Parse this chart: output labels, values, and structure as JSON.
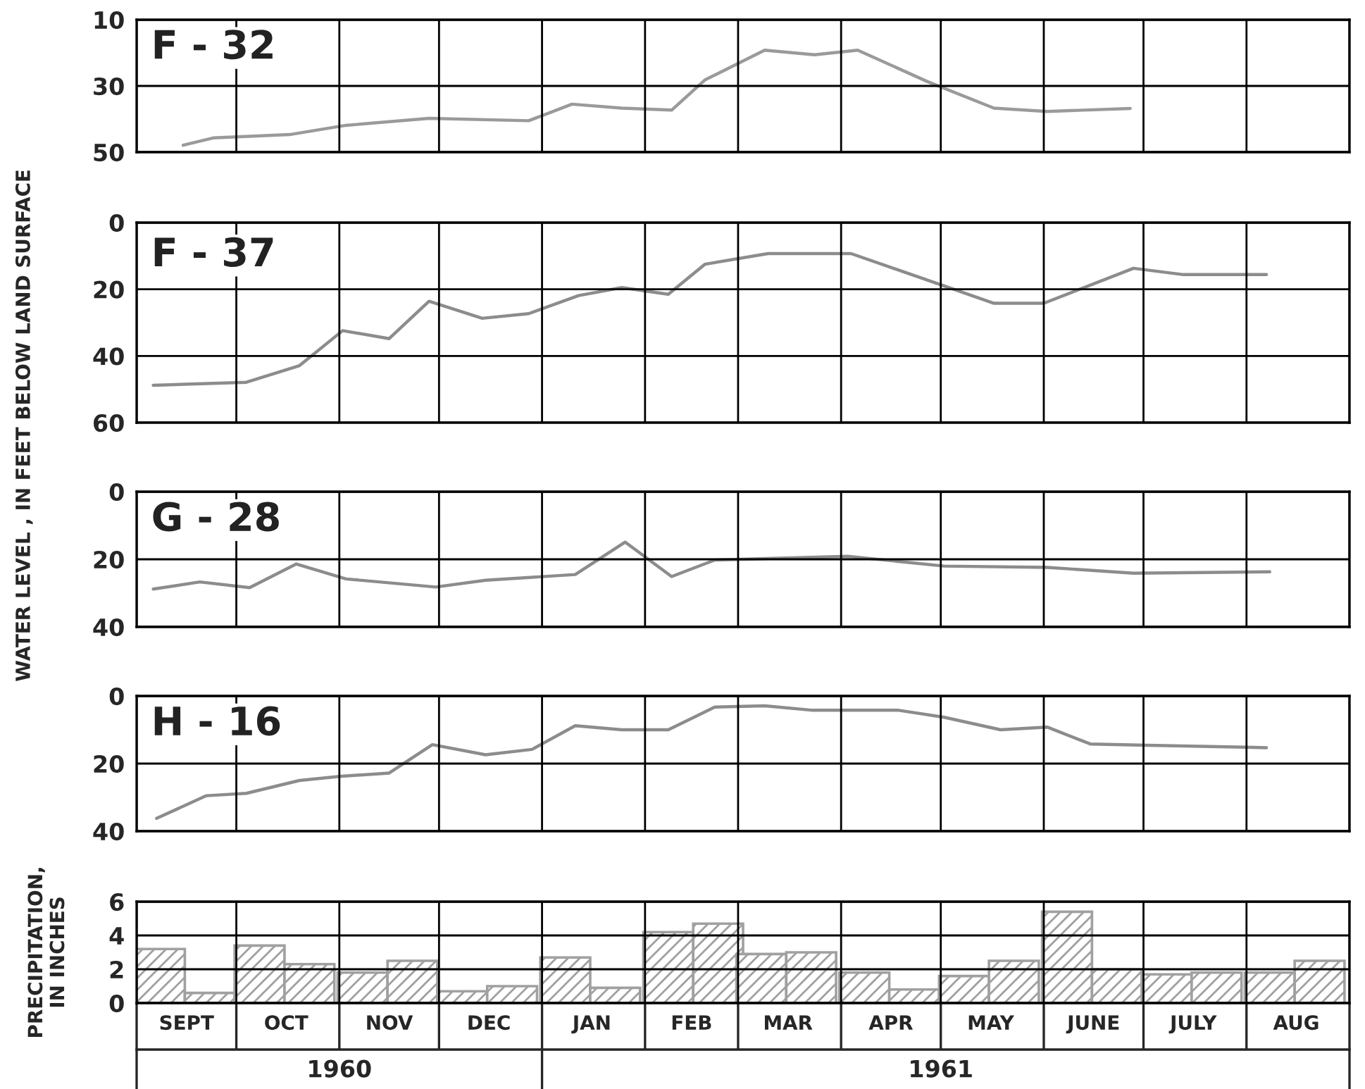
{
  "chart_data": [
    {
      "type": "line",
      "title": "F - 32",
      "ylabel": "WATER LEVEL , IN FEET BELOW LAND SURFACE",
      "xlim": [
        "1960-09-01",
        "1961-09-01"
      ],
      "xticks": [
        {
          "value": "1960-09-01",
          "label": null
        },
        {
          "value": "1960-10-01",
          "label": null
        },
        {
          "value": "1960-11-01",
          "label": null
        },
        {
          "value": "1960-12-01",
          "label": null
        },
        {
          "value": "1961-01-01",
          "label": null
        },
        {
          "value": "1961-02-01",
          "label": null
        },
        {
          "value": "1961-03-01",
          "label": null
        },
        {
          "value": "1961-04-01",
          "label": null
        },
        {
          "value": "1961-05-01",
          "label": null
        },
        {
          "value": "1961-06-01",
          "label": null
        },
        {
          "value": "1961-07-01",
          "label": null
        },
        {
          "value": "1961-08-01",
          "label": null
        },
        {
          "value": "1961-09-01",
          "label": null
        }
      ],
      "ylim": [
        50,
        10
      ],
      "yticks": [
        10,
        30,
        50
      ],
      "grid": true,
      "tick_labels": "y",
      "series": [
        {
          "color": "#9a9a9a",
          "x": [
            "1960-09-15",
            "1960-09-24",
            "1960-10-17",
            "1960-11-03",
            "1960-11-28",
            "1960-12-28",
            "1961-01-10",
            "1961-01-25",
            "1961-02-09",
            "1961-02-19",
            "1961-03-09",
            "1961-03-24",
            "1961-04-06",
            "1961-04-27",
            "1961-05-17",
            "1961-06-02",
            "1961-06-27"
          ],
          "values": [
            47.9,
            45.7,
            44.7,
            41.9,
            39.8,
            40.5,
            35.5,
            36.7,
            37.3,
            28.2,
            19.2,
            20.6,
            19.2,
            28.7,
            36.7,
            37.7,
            36.8
          ]
        }
      ]
    },
    {
      "type": "line",
      "title": "F - 37",
      "xlim": [
        "1960-09-01",
        "1961-09-01"
      ],
      "xticks": [
        {
          "value": "1960-09-01",
          "label": null
        },
        {
          "value": "1960-10-01",
          "label": null
        },
        {
          "value": "1960-11-01",
          "label": null
        },
        {
          "value": "1960-12-01",
          "label": null
        },
        {
          "value": "1961-01-01",
          "label": null
        },
        {
          "value": "1961-02-01",
          "label": null
        },
        {
          "value": "1961-03-01",
          "label": null
        },
        {
          "value": "1961-04-01",
          "label": null
        },
        {
          "value": "1961-05-01",
          "label": null
        },
        {
          "value": "1961-06-01",
          "label": null
        },
        {
          "value": "1961-07-01",
          "label": null
        },
        {
          "value": "1961-08-01",
          "label": null
        },
        {
          "value": "1961-09-01",
          "label": null
        }
      ],
      "ylim": [
        60,
        0
      ],
      "yticks": [
        0,
        20,
        40,
        60
      ],
      "grid": true,
      "tick_labels": "y",
      "series": [
        {
          "color": "#8c8c8c",
          "x": [
            "1960-09-06",
            "1960-10-04",
            "1960-10-20",
            "1960-11-02",
            "1960-11-16",
            "1960-11-28",
            "1960-12-14",
            "1960-12-28",
            "1961-01-12",
            "1961-01-25",
            "1961-02-08",
            "1961-02-19",
            "1961-03-10",
            "1961-04-04",
            "1961-05-02",
            "1961-05-17",
            "1961-06-01",
            "1961-06-28",
            "1961-07-13",
            "1961-08-07"
          ],
          "values": [
            48.8,
            47.9,
            42.9,
            32.4,
            34.8,
            23.6,
            28.7,
            27.3,
            21.9,
            19.5,
            21.5,
            12.5,
            9.3,
            9.3,
            19,
            24.2,
            24.2,
            13.7,
            15.6,
            15.6
          ]
        }
      ]
    },
    {
      "type": "line",
      "title": "G - 28",
      "xlim": [
        "1960-09-01",
        "1961-09-01"
      ],
      "xticks": [
        {
          "value": "1960-09-01",
          "label": null
        },
        {
          "value": "1960-10-01",
          "label": null
        },
        {
          "value": "1960-11-01",
          "label": null
        },
        {
          "value": "1960-12-01",
          "label": null
        },
        {
          "value": "1961-01-01",
          "label": null
        },
        {
          "value": "1961-02-01",
          "label": null
        },
        {
          "value": "1961-03-01",
          "label": null
        },
        {
          "value": "1961-04-01",
          "label": null
        },
        {
          "value": "1961-05-01",
          "label": null
        },
        {
          "value": "1961-06-01",
          "label": null
        },
        {
          "value": "1961-07-01",
          "label": null
        },
        {
          "value": "1961-08-01",
          "label": null
        },
        {
          "value": "1961-09-01",
          "label": null
        }
      ],
      "ylim": [
        40,
        0
      ],
      "yticks": [
        0,
        20,
        40
      ],
      "grid": true,
      "tick_labels": "y",
      "series": [
        {
          "color": "#8c8c8c",
          "x": [
            "1960-09-06",
            "1960-09-20",
            "1960-10-05",
            "1960-10-19",
            "1960-11-03",
            "1960-11-30",
            "1960-12-15",
            "1961-01-11",
            "1961-01-26",
            "1961-02-09",
            "1961-02-22",
            "1961-04-03",
            "1961-05-02",
            "1961-06-02",
            "1961-06-28",
            "1961-08-08"
          ],
          "values": [
            28.8,
            26.7,
            28.4,
            21.4,
            25.8,
            28.2,
            26.2,
            24.5,
            14.9,
            25.1,
            20.2,
            19.1,
            22,
            22.4,
            24.1,
            23.7
          ]
        }
      ]
    },
    {
      "type": "line",
      "title": "H - 16",
      "xlim": [
        "1960-09-01",
        "1961-09-01"
      ],
      "xticks": [
        {
          "value": "1960-09-01",
          "label": null
        },
        {
          "value": "1960-10-01",
          "label": null
        },
        {
          "value": "1960-11-01",
          "label": null
        },
        {
          "value": "1960-12-01",
          "label": null
        },
        {
          "value": "1961-01-01",
          "label": null
        },
        {
          "value": "1961-02-01",
          "label": null
        },
        {
          "value": "1961-03-01",
          "label": null
        },
        {
          "value": "1961-04-01",
          "label": null
        },
        {
          "value": "1961-05-01",
          "label": null
        },
        {
          "value": "1961-06-01",
          "label": null
        },
        {
          "value": "1961-07-01",
          "label": null
        },
        {
          "value": "1961-08-01",
          "label": null
        },
        {
          "value": "1961-09-01",
          "label": null
        }
      ],
      "ylim": [
        40,
        0
      ],
      "yticks": [
        0,
        20,
        40
      ],
      "grid": true,
      "tick_labels": "y",
      "series": [
        {
          "color": "#8c8c8c",
          "x": [
            "1960-09-07",
            "1960-09-22",
            "1960-10-04",
            "1960-10-20",
            "1960-11-01",
            "1960-11-16",
            "1960-11-29",
            "1960-12-15",
            "1960-12-29",
            "1961-01-11",
            "1961-01-25",
            "1961-02-08",
            "1961-02-22",
            "1961-03-09",
            "1961-03-23",
            "1961-04-18",
            "1961-05-02",
            "1961-05-19",
            "1961-06-02",
            "1961-06-15",
            "1961-07-02",
            "1961-08-07"
          ],
          "values": [
            36.2,
            29.5,
            28.8,
            25,
            23.8,
            22.8,
            14.4,
            17.4,
            15.8,
            8.8,
            10,
            10,
            3.3,
            2.9,
            4.2,
            4.2,
            6.3,
            10,
            9.2,
            14.2,
            14.6,
            15.3
          ]
        }
      ]
    },
    {
      "type": "bar",
      "ylabel": "PRECIPITATION,\nIN INCHES",
      "xlim": [
        "1960-09-01",
        "1961-09-01"
      ],
      "xticks": [
        {
          "value": "1960-09-01",
          "label": null
        },
        {
          "value": "1960-09-16",
          "label": "SEPT"
        },
        {
          "value": "1960-10-01",
          "label": null
        },
        {
          "value": "1960-10-16",
          "label": "OCT"
        },
        {
          "value": "1960-11-01",
          "label": null
        },
        {
          "value": "1960-11-16",
          "label": "NOV"
        },
        {
          "value": "1960-12-01",
          "label": null
        },
        {
          "value": "1960-12-16",
          "label": "DEC"
        },
        {
          "value": "1961-01-01",
          "label": null
        },
        {
          "value": "1961-01-16",
          "label": "JAN"
        },
        {
          "value": "1961-02-01",
          "label": null
        },
        {
          "value": "1961-02-15",
          "label": "FEB"
        },
        {
          "value": "1961-03-01",
          "label": null
        },
        {
          "value": "1961-03-16",
          "label": "MAR"
        },
        {
          "value": "1961-04-01",
          "label": null
        },
        {
          "value": "1961-04-16",
          "label": "APR"
        },
        {
          "value": "1961-05-01",
          "label": null
        },
        {
          "value": "1961-05-16",
          "label": "MAY"
        },
        {
          "value": "1961-06-01",
          "label": null
        },
        {
          "value": "1961-06-16",
          "label": "JUNE"
        },
        {
          "value": "1961-07-01",
          "label": null
        },
        {
          "value": "1961-07-16",
          "label": "JULY"
        },
        {
          "value": "1961-08-01",
          "label": null
        },
        {
          "value": "1961-08-16",
          "label": "AUG"
        },
        {
          "value": "1961-09-01",
          "label": null
        }
      ],
      "x2lim": [
        "1960-09-01",
        "1961-09-01"
      ],
      "x2ticks": [
        {
          "value": "1960-09-01",
          "label": null
        },
        {
          "value": "1960-11-01",
          "label": "1960"
        },
        {
          "value": "1961-01-01",
          "label": null
        },
        {
          "value": "1961-05-01",
          "label": "1961"
        },
        {
          "value": "1961-09-01",
          "label": null
        }
      ],
      "ylim": [
        0,
        6
      ],
      "yticks": [
        0,
        2,
        4,
        6
      ],
      "grid": true,
      "series": [
        {
          "color": "#a0a0a0",
          "x": [
            "1960-09-08",
            "1960-09-23",
            "1960-10-08",
            "1960-10-23",
            "1960-11-08",
            "1960-11-23",
            "1960-12-08",
            "1960-12-23",
            "1961-01-08",
            "1961-01-23",
            "1961-02-08",
            "1961-02-23",
            "1961-03-08",
            "1961-03-23",
            "1961-04-08",
            "1961-04-23",
            "1961-05-08",
            "1961-05-23",
            "1961-06-08",
            "1961-06-23",
            "1961-07-08",
            "1961-07-23",
            "1961-08-08",
            "1961-08-23"
          ],
          "values": [
            3.2,
            0.6,
            3.4,
            2.3,
            1.8,
            2.5,
            0.7,
            1.0,
            2.7,
            0.9,
            4.2,
            4.7,
            2.9,
            3.0,
            1.8,
            0.8,
            1.6,
            2.5,
            5.4,
            2.0,
            1.7,
            1.8,
            1.8,
            2.5
          ]
        }
      ]
    }
  ]
}
